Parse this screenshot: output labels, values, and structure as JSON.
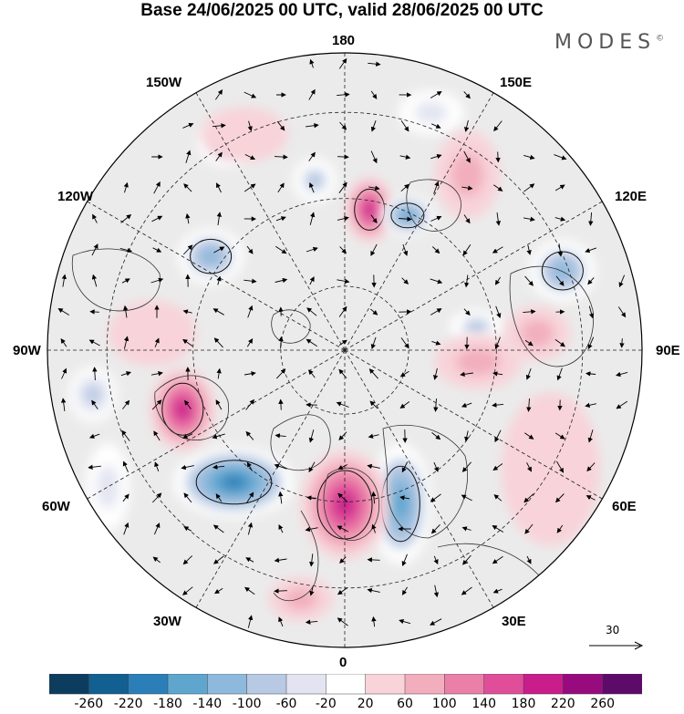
{
  "title": "Base 24/06/2025 00 UTC, valid 28/06/2025 00 UTC",
  "brand": {
    "text": "MODES",
    "mark": "©"
  },
  "longitude_labels": {
    "l180": "180",
    "l0": "0",
    "l150w": "150W",
    "l150e": "150E",
    "l120w": "120W",
    "l120e": "120E",
    "l90w": "90W",
    "l90e": "90E",
    "l60w": "60W",
    "l60e": "60E",
    "l30w": "30W",
    "l30e": "30E"
  },
  "reference_vector": {
    "label": "30"
  },
  "colorbar": {
    "colors": [
      "#0d3d5e",
      "#125f91",
      "#2b7fb8",
      "#5fa6cf",
      "#8fb9dc",
      "#b8c9e3",
      "#e2e4f1",
      "#ffffff",
      "#f8d3d9",
      "#f2aebd",
      "#ea7fa8",
      "#e04e9a",
      "#c81d8b",
      "#970b7e",
      "#5d0a6b"
    ],
    "ticks": [
      "-260",
      "-220",
      "-180",
      "-140",
      "-100",
      "-60",
      "-20",
      "20",
      "60",
      "100",
      "140",
      "180",
      "220",
      "260"
    ]
  },
  "anomalies": [
    {
      "lon": 170,
      "r": 0.48,
      "v": 210,
      "rx": 22,
      "ry": 30
    },
    {
      "lon": 155,
      "r": 0.5,
      "v": -170,
      "rx": 24,
      "ry": 18
    },
    {
      "lon": 160,
      "r": 0.85,
      "v": -60,
      "rx": 30,
      "ry": 20
    },
    {
      "lon": 145,
      "r": 0.72,
      "v": 60,
      "rx": 30,
      "ry": 40
    },
    {
      "lon": 110,
      "r": 0.78,
      "v": -130,
      "rx": 30,
      "ry": 28
    },
    {
      "lon": 100,
      "r": 0.45,
      "v": -80,
      "rx": 25,
      "ry": 15
    },
    {
      "lon": 95,
      "r": 0.65,
      "v": 70,
      "rx": 30,
      "ry": 25
    },
    {
      "lon": 85,
      "r": 0.45,
      "v": 80,
      "rx": 40,
      "ry": 25
    },
    {
      "lon": 60,
      "r": 0.8,
      "v": 40,
      "rx": 45,
      "ry": 70
    },
    {
      "lon": 20,
      "r": 0.55,
      "v": -170,
      "rx": 28,
      "ry": 55
    },
    {
      "lon": 0,
      "r": 0.52,
      "v": 210,
      "rx": 40,
      "ry": 50
    },
    {
      "lon": -10,
      "r": 0.85,
      "v": 60,
      "rx": 30,
      "ry": 20
    },
    {
      "lon": -40,
      "r": 0.58,
      "v": -220,
      "rx": 55,
      "ry": 32
    },
    {
      "lon": -70,
      "r": 0.58,
      "v": 210,
      "rx": 30,
      "ry": 38
    },
    {
      "lon": -80,
      "r": 0.86,
      "v": -90,
      "rx": 22,
      "ry": 25
    },
    {
      "lon": -60,
      "r": 0.92,
      "v": -40,
      "rx": 20,
      "ry": 40
    },
    {
      "lon": -125,
      "r": 0.55,
      "v": -110,
      "rx": 30,
      "ry": 25
    },
    {
      "lon": -150,
      "r": 0.8,
      "v": -80,
      "rx": 25,
      "ry": 20
    },
    {
      "lon": -155,
      "r": 0.8,
      "v": 40,
      "rx": 40,
      "ry": 25
    },
    {
      "lon": -170,
      "r": 0.58,
      "v": -70,
      "rx": 20,
      "ry": 20
    },
    {
      "lon": -95,
      "r": 0.65,
      "v": 40,
      "rx": 40,
      "ry": 30
    }
  ]
}
